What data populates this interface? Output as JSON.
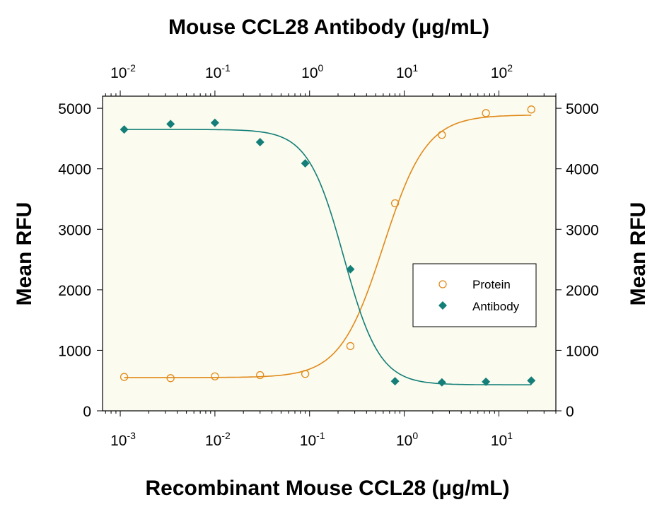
{
  "chart_data": {
    "type": "scatter",
    "title_top": "Mouse CCL28 Antibody (μg/mL)",
    "xlabel": "Recombinant Mouse CCL28 (μg/mL)",
    "ylabel_left": "Mean RFU",
    "ylabel_right": "Mean RFU",
    "x_scale": "log",
    "xlim": [
      0.00065,
      40
    ],
    "ylim": [
      0,
      5200
    ],
    "x_ticks": [
      {
        "value": 0.001,
        "base": "10",
        "exp": "-3"
      },
      {
        "value": 0.01,
        "base": "10",
        "exp": "-2"
      },
      {
        "value": 0.1,
        "base": "10",
        "exp": "-1"
      },
      {
        "value": 1,
        "base": "10",
        "exp": "0"
      },
      {
        "value": 10,
        "base": "10",
        "exp": "1"
      }
    ],
    "y_ticks": [
      0,
      1000,
      2000,
      3000,
      4000,
      5000
    ],
    "top_axis": {
      "scale": "log",
      "xlim": [
        0.0065,
        400
      ],
      "ticks": [
        {
          "value": 0.01,
          "base": "10",
          "exp": "-2"
        },
        {
          "value": 0.1,
          "base": "10",
          "exp": "-1"
        },
        {
          "value": 1,
          "base": "10",
          "exp": "0"
        },
        {
          "value": 10,
          "base": "10",
          "exp": "1"
        },
        {
          "value": 100,
          "base": "10",
          "exp": "2"
        }
      ]
    },
    "legend_position": "center-right",
    "series": [
      {
        "name": "Protein",
        "marker": "open-circle",
        "color": "#e08a1a",
        "x": [
          0.0011,
          0.0034,
          0.01,
          0.03,
          0.09,
          0.27,
          0.8,
          2.5,
          7.3,
          22
        ],
        "y": [
          560,
          540,
          570,
          590,
          610,
          1070,
          3430,
          4560,
          4920,
          4980
        ],
        "fit": {
          "bottom": 550,
          "top": 4890,
          "ec50": 0.6,
          "hill": 1.9
        }
      },
      {
        "name": "Antibody",
        "marker": "filled-diamond",
        "color": "#137f78",
        "x": [
          0.011,
          0.034,
          0.1,
          0.3,
          0.9,
          2.7,
          8,
          25,
          73,
          220
        ],
        "y": [
          4650,
          4740,
          4760,
          4440,
          4090,
          2340,
          490,
          470,
          480,
          500
        ],
        "fit": {
          "top": 4650,
          "bottom": 430,
          "ic50": 2.3,
          "hill": 2.3
        }
      }
    ]
  }
}
